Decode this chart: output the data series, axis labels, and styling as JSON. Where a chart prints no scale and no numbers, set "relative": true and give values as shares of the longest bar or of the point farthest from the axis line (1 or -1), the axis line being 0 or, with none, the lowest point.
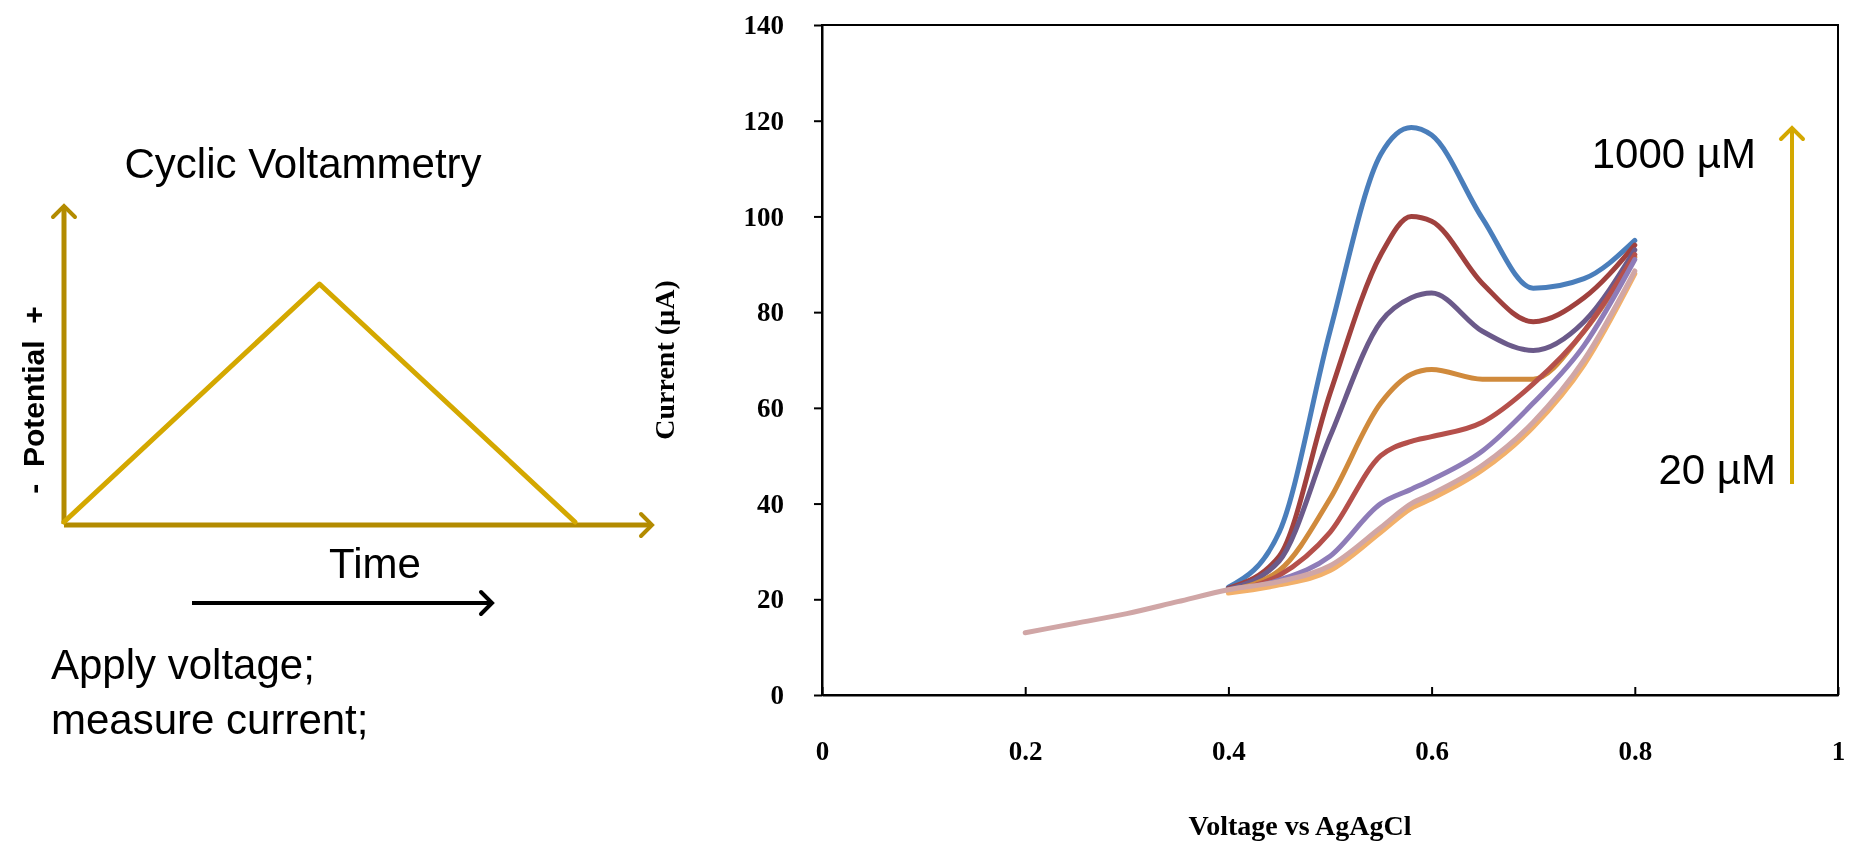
{
  "chart_data": [
    {
      "type": "line",
      "relative": true,
      "title": "Cyclic Voltammetry",
      "xlabel": "Time",
      "ylabel": "-  Potential  +",
      "categories": [
        null,
        null,
        null
      ],
      "marker": "none",
      "series": [
        {
          "color": "#d4a800",
          "values": [
            0,
            1,
            0
          ]
        }
      ],
      "annotations": [
        "Apply voltage;\nmeasure current;"
      ]
    },
    {
      "type": "line",
      "xlabel": "Voltage vs AgAgCl",
      "ylabel": "Current (µA)",
      "xlim": [
        0,
        1
      ],
      "xticks": [
        0,
        0.2,
        0.4,
        0.6,
        0.8,
        1
      ],
      "ylim": [
        0,
        140
      ],
      "yticks": [
        0,
        20,
        40,
        60,
        80,
        100,
        120,
        140
      ],
      "grid": false,
      "marker": "none",
      "x": [
        0.2,
        0.25,
        0.3,
        0.35,
        0.4,
        0.45,
        0.5,
        0.55,
        0.58,
        0.6,
        0.65,
        0.7,
        0.75,
        0.8
      ],
      "series": [
        {
          "color": "#4a7ebb",
          "values": [
            null,
            null,
            null,
            null,
            22.5,
            34,
            76,
            113,
            118.6,
            117,
            99.6,
            85,
            87,
            95
          ]
        },
        {
          "color": "#a0413e",
          "values": [
            null,
            null,
            null,
            null,
            22.3,
            29,
            63,
            92,
            100,
            99,
            86,
            78,
            83,
            94
          ]
        },
        {
          "color": "#6b5a8a",
          "values": [
            null,
            null,
            null,
            null,
            22.1,
            28,
            54,
            78,
            83,
            84,
            76,
            72,
            78,
            93
          ]
        },
        {
          "color": "#d08a3c",
          "values": [
            null,
            null,
            null,
            null,
            21.9,
            26,
            41,
            61,
            67,
            68,
            66,
            66,
            76,
            91.5
          ]
        },
        {
          "color": "#b5504b",
          "values": [
            null,
            null,
            null,
            null,
            21.7,
            25,
            34,
            50,
            53,
            54,
            57,
            65,
            76,
            92
          ]
        },
        {
          "color": "#8e7cb8",
          "values": [
            null,
            null,
            null,
            null,
            21.5,
            24,
            29,
            40,
            43,
            45,
            51,
            61,
            73,
            91
          ]
        },
        {
          "color": "#f2b06a",
          "values": [
            null,
            null,
            null,
            null,
            21.3,
            23,
            26,
            34,
            39,
            41,
            47,
            56,
            69,
            88
          ]
        },
        {
          "color": "#d0a6a6",
          "values": [
            13,
            15,
            17,
            19.5,
            22,
            23.7,
            27,
            35,
            40,
            42,
            48,
            57,
            70,
            88.6
          ]
        }
      ],
      "annotations": [
        "1000 µM",
        "20 µM"
      ]
    }
  ]
}
